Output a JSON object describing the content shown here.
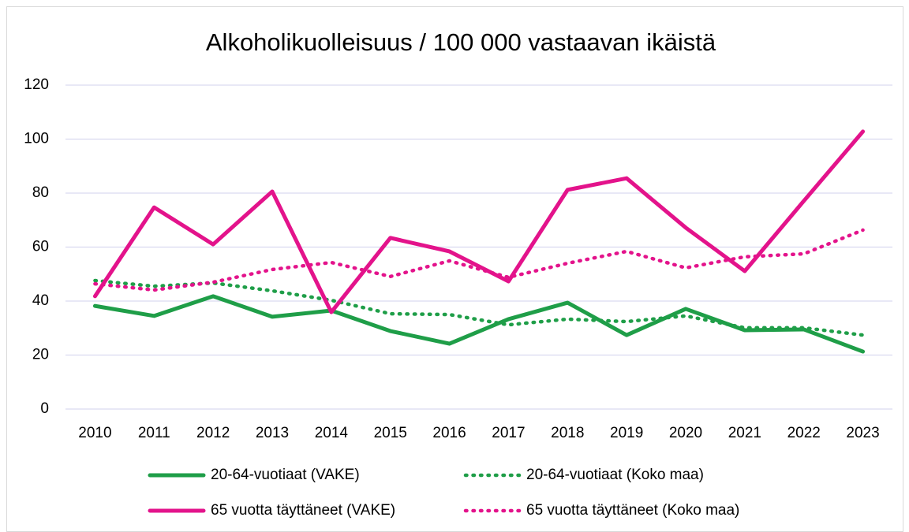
{
  "chart_data": {
    "type": "line",
    "title": "Alkoholikuolleisuus / 100 000 vastaavan ikäistä",
    "categories": [
      "2010",
      "2011",
      "2012",
      "2013",
      "2014",
      "2015",
      "2016",
      "2017",
      "2018",
      "2019",
      "2020",
      "2021",
      "2022",
      "2023"
    ],
    "series": [
      {
        "name": "20-64-vuotiaat (VAKE)",
        "color": "#1f9e48",
        "line_style": "solid",
        "values": [
          38.2,
          34.5,
          41.8,
          34.2,
          36.5,
          28.9,
          24.2,
          33.3,
          39.4,
          27.4,
          37.1,
          29.2,
          29.5,
          21.3
        ]
      },
      {
        "name": "20-64-vuotiaat (Koko maa)",
        "color": "#1f9e48",
        "line_style": "dotted",
        "values": [
          47.6,
          45.5,
          46.7,
          43.8,
          40.3,
          35.3,
          35.0,
          31.2,
          33.3,
          32.4,
          34.5,
          30.1,
          30.1,
          27.4
        ]
      },
      {
        "name": "65 vuotta täyttäneet (VAKE)",
        "color": "#e3138b",
        "line_style": "solid",
        "values": [
          41.8,
          74.7,
          61.0,
          80.6,
          35.9,
          63.4,
          58.4,
          47.3,
          81.2,
          85.5,
          67.2,
          51.1,
          77.1,
          102.8
        ]
      },
      {
        "name": "65 vuotta täyttäneet (Koko maa)",
        "color": "#e3138b",
        "line_style": "dotted",
        "values": [
          46.4,
          44.1,
          47.0,
          51.7,
          54.3,
          49.1,
          54.9,
          48.8,
          54.0,
          58.4,
          52.3,
          56.4,
          57.5,
          66.3
        ]
      }
    ],
    "ylim": [
      0,
      120
    ],
    "yticks": [
      0,
      20,
      40,
      60,
      80,
      100,
      120
    ],
    "grid": true,
    "legend": "bottom"
  }
}
